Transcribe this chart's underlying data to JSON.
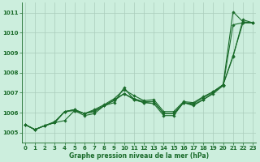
{
  "xlabel": "Graphe pression niveau de la mer (hPa)",
  "background_color": "#cceedd",
  "grid_color": "#aaccbb",
  "line_color": "#1a6b2a",
  "ylim": [
    1004.5,
    1011.5
  ],
  "xlim": [
    -0.3,
    23.3
  ],
  "yticks": [
    1005,
    1006,
    1007,
    1008,
    1009,
    1010,
    1011
  ],
  "xticks": [
    0,
    1,
    2,
    3,
    4,
    5,
    6,
    7,
    8,
    9,
    10,
    11,
    12,
    13,
    14,
    15,
    16,
    17,
    18,
    19,
    20,
    21,
    22,
    23
  ],
  "series": [
    [
      1005.4,
      1005.15,
      1005.35,
      1005.5,
      1005.6,
      1006.1,
      1005.85,
      1005.95,
      1006.35,
      1006.5,
      1007.25,
      1006.65,
      1006.5,
      1006.45,
      1005.85,
      1005.85,
      1006.5,
      1006.4,
      1006.65,
      1007.0,
      1007.4,
      1011.05,
      1010.55,
      1010.5
    ],
    [
      1005.4,
      1005.15,
      1005.35,
      1005.5,
      1006.05,
      1006.1,
      1005.95,
      1006.05,
      1006.35,
      1006.6,
      1006.95,
      1006.65,
      1006.5,
      1006.55,
      1005.95,
      1005.95,
      1006.5,
      1006.35,
      1006.65,
      1006.95,
      1007.35,
      1010.4,
      1010.5,
      1010.5
    ],
    [
      1005.4,
      1005.15,
      1005.35,
      1005.5,
      1006.05,
      1006.15,
      1005.95,
      1006.1,
      1006.35,
      1006.65,
      1006.95,
      1006.7,
      1006.55,
      1006.55,
      1005.95,
      1005.95,
      1006.5,
      1006.45,
      1006.75,
      1007.05,
      1007.4,
      1008.85,
      1010.5,
      1010.5
    ],
    [
      1005.4,
      1005.15,
      1005.35,
      1005.55,
      1006.05,
      1006.15,
      1005.95,
      1006.15,
      1006.4,
      1006.7,
      1007.15,
      1006.85,
      1006.6,
      1006.65,
      1006.05,
      1006.05,
      1006.55,
      1006.5,
      1006.8,
      1007.05,
      1007.4,
      1008.8,
      1010.65,
      1010.5
    ]
  ],
  "marker": "D",
  "marker_size": 1.8,
  "line_width": 0.8,
  "xlabel_fontsize": 5.5,
  "xlabel_fontweight": "bold",
  "tick_labelsize": 5.0,
  "tick_color": "#1a6b2a",
  "figsize": [
    3.2,
    2.0
  ],
  "dpi": 100
}
